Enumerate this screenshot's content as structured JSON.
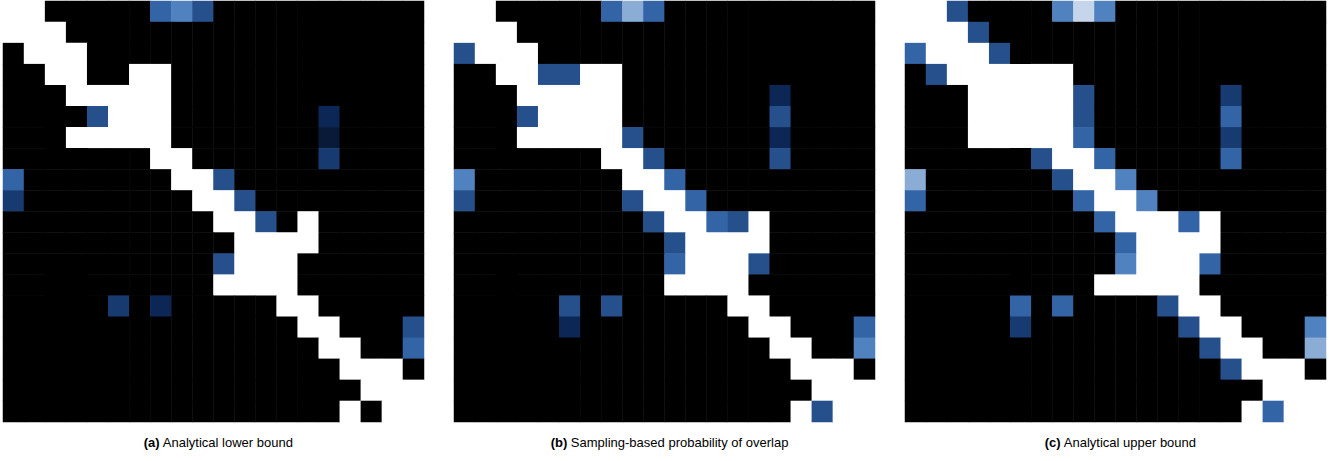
{
  "chart_data": [
    {
      "type": "heatmap",
      "panel": "(a)",
      "title": "Analytical lower bound",
      "tick_labels": false,
      "zlim": [
        0,
        1
      ],
      "colors": [
        "#000000",
        "#0d2b5e",
        "#3d74b8",
        "#ffffff"
      ],
      "cells": [
        [
          1,
          1,
          0,
          0,
          0,
          0,
          0,
          0.6,
          0.7,
          0.5,
          0,
          0,
          0,
          0,
          0,
          0,
          0,
          0,
          0,
          0
        ],
        [
          1,
          1,
          1,
          0,
          0,
          0,
          0,
          0,
          0,
          0,
          0,
          0,
          0,
          0,
          0,
          0,
          0,
          0,
          0,
          0
        ],
        [
          0,
          1,
          1,
          1,
          0,
          0,
          0,
          0,
          0,
          0,
          0,
          0,
          0,
          0,
          0,
          0,
          0,
          0,
          0,
          0
        ],
        [
          0,
          0,
          1,
          1,
          0,
          0,
          1,
          1,
          0,
          0,
          0,
          0,
          0,
          0,
          0,
          0,
          0,
          0,
          0,
          0
        ],
        [
          0,
          0,
          0,
          1,
          1,
          1,
          1,
          1,
          0,
          0,
          0,
          0,
          0,
          0,
          0,
          0,
          0,
          0,
          0,
          0
        ],
        [
          0,
          0,
          0,
          0,
          0.5,
          1,
          1,
          1,
          0,
          0,
          0,
          0,
          0,
          0,
          0,
          0.3,
          0,
          0,
          0,
          0
        ],
        [
          0,
          0,
          0,
          1,
          1,
          1,
          1,
          1,
          0,
          0,
          0,
          0,
          0,
          0,
          0,
          0.2,
          0,
          0,
          0,
          0
        ],
        [
          0,
          0,
          0,
          0,
          0,
          0,
          0,
          1,
          1,
          0,
          0,
          0,
          0,
          0,
          0,
          0.4,
          0,
          0,
          0,
          0
        ],
        [
          0.6,
          0,
          0,
          0,
          0,
          0,
          0,
          0,
          1,
          1,
          0.5,
          0,
          0,
          0,
          0,
          0,
          0,
          0,
          0,
          0
        ],
        [
          0.4,
          0,
          0,
          0,
          0,
          0,
          0,
          0,
          0,
          1,
          1,
          0.5,
          0,
          0,
          0,
          0,
          0,
          0,
          0,
          0
        ],
        [
          0,
          0,
          0,
          0,
          0,
          0,
          0,
          0,
          0,
          0,
          1,
          1,
          0.5,
          0,
          1,
          0,
          0,
          0,
          0,
          0
        ],
        [
          0,
          0,
          0,
          0,
          0,
          0,
          0,
          0,
          0,
          0,
          0,
          1,
          1,
          1,
          1,
          0,
          0,
          0,
          0,
          0
        ],
        [
          0,
          0,
          0,
          0,
          0,
          0,
          0,
          0,
          0,
          0,
          0.5,
          1,
          1,
          1,
          0,
          0,
          0,
          0,
          0,
          0
        ],
        [
          0,
          0,
          0,
          0,
          0,
          0,
          0,
          0,
          0,
          0,
          1,
          1,
          1,
          1,
          0,
          0,
          0,
          0,
          0,
          0
        ],
        [
          0,
          0,
          0,
          0,
          0,
          0.4,
          0,
          0.3,
          0,
          0,
          0,
          0,
          0,
          1,
          1,
          0,
          0,
          0,
          0,
          0
        ],
        [
          0,
          0,
          0,
          0,
          0,
          0,
          0,
          0,
          0,
          0,
          0,
          0,
          0,
          0,
          1,
          1,
          0,
          0,
          0,
          0.5
        ],
        [
          0,
          0,
          0,
          0,
          0,
          0,
          0,
          0,
          0,
          0,
          0,
          0,
          0,
          0,
          0,
          1,
          1,
          0,
          0,
          0.6
        ],
        [
          0,
          0,
          0,
          0,
          0,
          0,
          0,
          0,
          0,
          0,
          0,
          0,
          0,
          0,
          0,
          0,
          1,
          1,
          1,
          0
        ],
        [
          0,
          0,
          0,
          0,
          0,
          0,
          0,
          0,
          0,
          0,
          0,
          0,
          0,
          0,
          0,
          0,
          0,
          1,
          1,
          1
        ],
        [
          0,
          0,
          0,
          0,
          0,
          0,
          0,
          0,
          0,
          0,
          0,
          0,
          0,
          0,
          0,
          0,
          1,
          0,
          1,
          1
        ]
      ]
    },
    {
      "type": "heatmap",
      "panel": "(b)",
      "title": "Sampling-based probability of overlap",
      "tick_labels": false,
      "zlim": [
        0,
        1
      ],
      "colors": [
        "#000000",
        "#0d2b5e",
        "#3d74b8",
        "#ffffff"
      ],
      "cells": [
        [
          1,
          1,
          0,
          0,
          0,
          0,
          0,
          0.6,
          0.8,
          0.6,
          0,
          0,
          0,
          0,
          0,
          0,
          0,
          0,
          0,
          0
        ],
        [
          1,
          1,
          1,
          0,
          0,
          0,
          0,
          0,
          0,
          0,
          0,
          0,
          0,
          0,
          0,
          0,
          0,
          0,
          0,
          0
        ],
        [
          0.5,
          1,
          1,
          1,
          0,
          0,
          0,
          0,
          0,
          0,
          0,
          0,
          0,
          0,
          0,
          0,
          0,
          0,
          0,
          0
        ],
        [
          0,
          0,
          1,
          1,
          0.5,
          0.5,
          1,
          1,
          0,
          0,
          0,
          0,
          0,
          0,
          0,
          0,
          0,
          0,
          0,
          0
        ],
        [
          0,
          0,
          0,
          1,
          1,
          1,
          1,
          1,
          0,
          0,
          0,
          0,
          0,
          0,
          0,
          0.3,
          0,
          0,
          0,
          0
        ],
        [
          0,
          0,
          0,
          0.5,
          1,
          1,
          1,
          1,
          0,
          0,
          0,
          0,
          0,
          0,
          0,
          0.5,
          0,
          0,
          0,
          0
        ],
        [
          0,
          0,
          0,
          1,
          1,
          1,
          1,
          1,
          0.5,
          0,
          0,
          0,
          0,
          0,
          0,
          0.3,
          0,
          0,
          0,
          0
        ],
        [
          0,
          0,
          0,
          0,
          0,
          0,
          0,
          1,
          1,
          0.5,
          0,
          0,
          0,
          0,
          0,
          0.5,
          0,
          0,
          0,
          0
        ],
        [
          0.7,
          0,
          0,
          0,
          0,
          0,
          0,
          0,
          1,
          1,
          0.6,
          0,
          0,
          0,
          0,
          0,
          0,
          0,
          0,
          0
        ],
        [
          0.5,
          0,
          0,
          0,
          0,
          0,
          0,
          0,
          0.5,
          1,
          1,
          0.6,
          0,
          0,
          0,
          0,
          0,
          0,
          0,
          0
        ],
        [
          0,
          0,
          0,
          0,
          0,
          0,
          0,
          0,
          0,
          0.5,
          1,
          1,
          0.6,
          0.5,
          1,
          0,
          0,
          0,
          0,
          0
        ],
        [
          0,
          0,
          0,
          0,
          0,
          0,
          0,
          0,
          0,
          0,
          0.5,
          1,
          1,
          1,
          1,
          0,
          0,
          0,
          0,
          0
        ],
        [
          0,
          0,
          0,
          0,
          0,
          0,
          0,
          0,
          0,
          0,
          0.6,
          1,
          1,
          1,
          0.5,
          0,
          0,
          0,
          0,
          0
        ],
        [
          0,
          0,
          0,
          0,
          0,
          0,
          0,
          0,
          0,
          0,
          1,
          1,
          1,
          1,
          0,
          0,
          0,
          0,
          0,
          0
        ],
        [
          0,
          0,
          0,
          0,
          0,
          0.5,
          0,
          0.5,
          0,
          0,
          0,
          0,
          0,
          1,
          1,
          0,
          0,
          0,
          0,
          0
        ],
        [
          0,
          0,
          0,
          0,
          0,
          0.3,
          0,
          0,
          0,
          0,
          0,
          0,
          0,
          0,
          1,
          1,
          0,
          0,
          0,
          0.6
        ],
        [
          0,
          0,
          0,
          0,
          0,
          0,
          0,
          0,
          0,
          0,
          0,
          0,
          0,
          0,
          0,
          1,
          1,
          0,
          0,
          0.7
        ],
        [
          0,
          0,
          0,
          0,
          0,
          0,
          0,
          0,
          0,
          0,
          0,
          0,
          0,
          0,
          0,
          0,
          1,
          1,
          1,
          0
        ],
        [
          0,
          0,
          0,
          0,
          0,
          0,
          0,
          0,
          0,
          0,
          0,
          0,
          0,
          0,
          0,
          0,
          0,
          1,
          1,
          1
        ],
        [
          0,
          0,
          0,
          0,
          0,
          0,
          0,
          0,
          0,
          0,
          0,
          0,
          0,
          0,
          0,
          0,
          1,
          0.5,
          1,
          1
        ]
      ]
    },
    {
      "type": "heatmap",
      "panel": "(c)",
      "title": "Analytical upper bound",
      "tick_labels": false,
      "zlim": [
        0,
        1
      ],
      "colors": [
        "#000000",
        "#0d2b5e",
        "#3d74b8",
        "#ffffff"
      ],
      "cells": [
        [
          1,
          1,
          0.5,
          0,
          0,
          0,
          0,
          0.7,
          0.9,
          0.7,
          0,
          0,
          0,
          0,
          0,
          0,
          0,
          0,
          0,
          0
        ],
        [
          1,
          1,
          1,
          0.5,
          0,
          0,
          0,
          0,
          0,
          0,
          0,
          0,
          0,
          0,
          0,
          0,
          0,
          0,
          0,
          0
        ],
        [
          0.6,
          1,
          1,
          1,
          0.5,
          0,
          0,
          0,
          0,
          0,
          0,
          0,
          0,
          0,
          0,
          0,
          0,
          0,
          0,
          0
        ],
        [
          0,
          0.5,
          1,
          1,
          1,
          1,
          1,
          1,
          0,
          0,
          0,
          0,
          0,
          0,
          0,
          0,
          0,
          0,
          0,
          0
        ],
        [
          0,
          0,
          0,
          1,
          1,
          1,
          1,
          1,
          0.5,
          0,
          0,
          0,
          0,
          0,
          0,
          0.4,
          0,
          0,
          0,
          0
        ],
        [
          0,
          0,
          0,
          1,
          1,
          1,
          1,
          1,
          0.5,
          0,
          0,
          0,
          0,
          0,
          0,
          0.6,
          0,
          0,
          0,
          0
        ],
        [
          0,
          0,
          0,
          1,
          1,
          1,
          1,
          1,
          0.6,
          0,
          0,
          0,
          0,
          0,
          0,
          0.4,
          0,
          0,
          0,
          0
        ],
        [
          0,
          0,
          0,
          0,
          0,
          0,
          0.5,
          1,
          1,
          0.6,
          0,
          0,
          0,
          0,
          0,
          0.6,
          0,
          0,
          0,
          0
        ],
        [
          0.8,
          0,
          0,
          0,
          0,
          0,
          0,
          0.5,
          1,
          1,
          0.7,
          0,
          0,
          0,
          0,
          0,
          0,
          0,
          0,
          0
        ],
        [
          0.6,
          0,
          0,
          0,
          0,
          0,
          0,
          0,
          0.6,
          1,
          1,
          0.7,
          0,
          0,
          0,
          0,
          0,
          0,
          0,
          0
        ],
        [
          0,
          0,
          0,
          0,
          0,
          0,
          0,
          0,
          0,
          0.6,
          1,
          1,
          1,
          0.6,
          1,
          0,
          0,
          0,
          0,
          0
        ],
        [
          0,
          0,
          0,
          0,
          0,
          0,
          0,
          0,
          0,
          0,
          0.6,
          1,
          1,
          1,
          1,
          0,
          0,
          0,
          0,
          0
        ],
        [
          0,
          0,
          0,
          0,
          0,
          0,
          0,
          0,
          0,
          0,
          0.7,
          1,
          1,
          1,
          0.6,
          0,
          0,
          0,
          0,
          0
        ],
        [
          0,
          0,
          0,
          0,
          0,
          0,
          0,
          0,
          0,
          1,
          1,
          1,
          1,
          1,
          0,
          0,
          0,
          0,
          0,
          0
        ],
        [
          0,
          0,
          0,
          0,
          0,
          0.6,
          0,
          0.6,
          0,
          0,
          0,
          0,
          0.5,
          1,
          1,
          0,
          0,
          0,
          0,
          0
        ],
        [
          0,
          0,
          0,
          0,
          0,
          0.4,
          0,
          0,
          0,
          0,
          0,
          0,
          0,
          0.5,
          1,
          1,
          0,
          0,
          0,
          0.7
        ],
        [
          0,
          0,
          0,
          0,
          0,
          0,
          0,
          0,
          0,
          0,
          0,
          0,
          0,
          0,
          0.5,
          1,
          1,
          0,
          0,
          0.8
        ],
        [
          0,
          0,
          0,
          0,
          0,
          0,
          0,
          0,
          0,
          0,
          0,
          0,
          0,
          0,
          0,
          0.5,
          1,
          1,
          1,
          0
        ],
        [
          0,
          0,
          0,
          0,
          0,
          0,
          0,
          0,
          0,
          0,
          0,
          0,
          0,
          0,
          0,
          0,
          0,
          1,
          1,
          1
        ],
        [
          0,
          0,
          0,
          0,
          0,
          0,
          0,
          0,
          0,
          0,
          0,
          0,
          0,
          0,
          0,
          0,
          1,
          0.6,
          1,
          1
        ]
      ]
    }
  ]
}
